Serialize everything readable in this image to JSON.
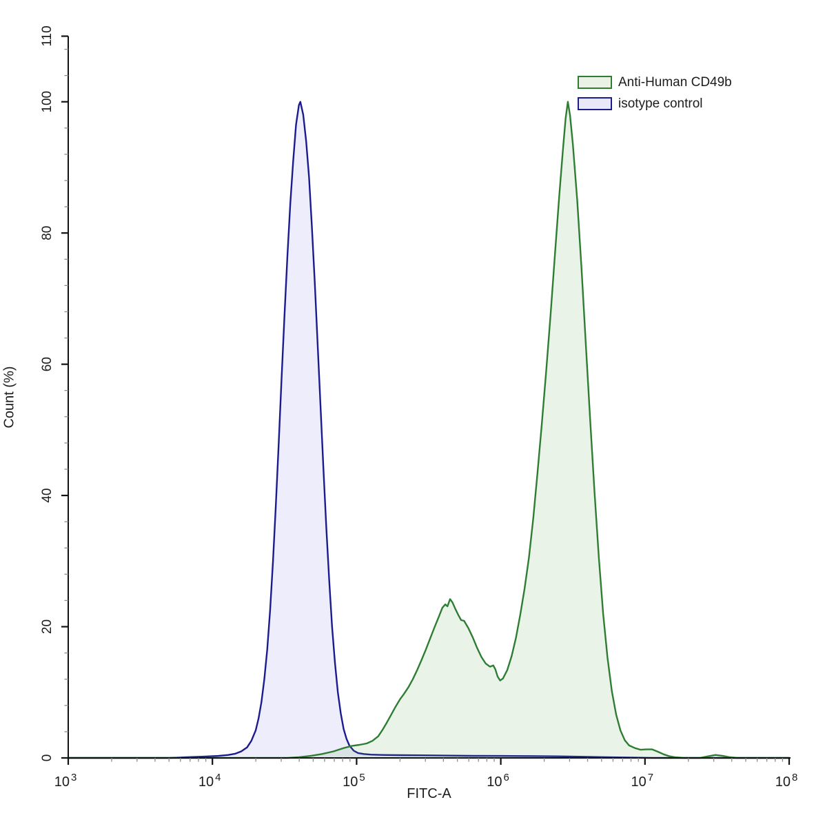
{
  "figure": {
    "background": "#ffffff",
    "axis_color": "#111111",
    "minor_tick_color": "#8a8a8a",
    "text_color": "#1c1c1c"
  },
  "legend": {
    "entries": [
      {
        "label": "Anti-Human CD49b",
        "stroke": "#2e7d33",
        "fill": "#e9f2e4"
      },
      {
        "label": "isotype control",
        "stroke": "#1b1b8e",
        "fill": "#e8e8f8"
      }
    ]
  },
  "chart_data": {
    "type": "area",
    "title": "",
    "xlabel": "FITC-A",
    "ylabel": "Count  (%)",
    "x_scale": "log10",
    "x_range_exponents": [
      3,
      8
    ],
    "x_major_tick_exponents": [
      3,
      4,
      5,
      6,
      7,
      8
    ],
    "x_tick_base": "10",
    "x_minor_ticks_per_decade": [
      2,
      3,
      4,
      5,
      6,
      7,
      8,
      9
    ],
    "y_range": [
      0,
      110
    ],
    "y_major_ticks": [
      0,
      20,
      40,
      60,
      80,
      100,
      110
    ],
    "y_minor_step": 4,
    "grid": false,
    "legend_position": "top-right",
    "series": [
      {
        "name": "isotype control",
        "stroke": "#1b1b8e",
        "fill": "rgba(80,80,215,0.10)",
        "stroke_width": 2.4,
        "points_log10x_pct": [
          [
            3.0,
            0
          ],
          [
            3.7,
            0
          ],
          [
            3.82,
            0.1
          ],
          [
            3.94,
            0.2
          ],
          [
            4.04,
            0.3
          ],
          [
            4.11,
            0.45
          ],
          [
            4.16,
            0.65
          ],
          [
            4.2,
            1.0
          ],
          [
            4.24,
            1.6
          ],
          [
            4.27,
            2.6
          ],
          [
            4.3,
            4.2
          ],
          [
            4.32,
            6.0
          ],
          [
            4.34,
            8.5
          ],
          [
            4.36,
            12.0
          ],
          [
            4.38,
            16.5
          ],
          [
            4.4,
            22.5
          ],
          [
            4.42,
            30.0
          ],
          [
            4.44,
            38.5
          ],
          [
            4.46,
            48.0
          ],
          [
            4.48,
            58.0
          ],
          [
            4.5,
            67.5
          ],
          [
            4.52,
            76.5
          ],
          [
            4.54,
            84.5
          ],
          [
            4.56,
            91.0
          ],
          [
            4.58,
            96.5
          ],
          [
            4.6,
            99.5
          ],
          [
            4.61,
            100.0
          ],
          [
            4.63,
            98.0
          ],
          [
            4.65,
            94.0
          ],
          [
            4.67,
            88.5
          ],
          [
            4.69,
            81.0
          ],
          [
            4.71,
            72.5
          ],
          [
            4.73,
            63.0
          ],
          [
            4.75,
            53.5
          ],
          [
            4.77,
            44.0
          ],
          [
            4.79,
            35.0
          ],
          [
            4.81,
            27.0
          ],
          [
            4.83,
            20.0
          ],
          [
            4.85,
            14.5
          ],
          [
            4.87,
            10.0
          ],
          [
            4.89,
            6.8
          ],
          [
            4.91,
            4.4
          ],
          [
            4.93,
            2.9
          ],
          [
            4.95,
            1.9
          ],
          [
            4.98,
            1.1
          ],
          [
            5.01,
            0.75
          ],
          [
            5.05,
            0.6
          ],
          [
            5.1,
            0.5
          ],
          [
            5.18,
            0.45
          ],
          [
            5.3,
            0.42
          ],
          [
            5.45,
            0.4
          ],
          [
            5.62,
            0.36
          ],
          [
            5.8,
            0.32
          ],
          [
            6.0,
            0.3
          ],
          [
            6.2,
            0.28
          ],
          [
            6.4,
            0.24
          ],
          [
            6.58,
            0.18
          ],
          [
            6.74,
            0.1
          ],
          [
            6.9,
            0.05
          ],
          [
            7.05,
            0
          ],
          [
            8.0,
            0
          ]
        ]
      },
      {
        "name": "Anti-Human CD49b",
        "stroke": "#2e7d33",
        "fill": "rgba(95,165,80,0.13)",
        "stroke_width": 2.4,
        "points_log10x_pct": [
          [
            3.0,
            0
          ],
          [
            4.52,
            0
          ],
          [
            4.6,
            0.1
          ],
          [
            4.68,
            0.3
          ],
          [
            4.76,
            0.6
          ],
          [
            4.84,
            1.0
          ],
          [
            4.91,
            1.5
          ],
          [
            4.97,
            1.85
          ],
          [
            5.02,
            2.0
          ],
          [
            5.07,
            2.2
          ],
          [
            5.11,
            2.6
          ],
          [
            5.15,
            3.3
          ],
          [
            5.18,
            4.3
          ],
          [
            5.21,
            5.4
          ],
          [
            5.24,
            6.6
          ],
          [
            5.27,
            7.8
          ],
          [
            5.3,
            8.9
          ],
          [
            5.33,
            9.8
          ],
          [
            5.36,
            10.8
          ],
          [
            5.39,
            12.0
          ],
          [
            5.42,
            13.4
          ],
          [
            5.45,
            14.9
          ],
          [
            5.48,
            16.5
          ],
          [
            5.51,
            18.2
          ],
          [
            5.54,
            19.9
          ],
          [
            5.57,
            21.5
          ],
          [
            5.595,
            22.9
          ],
          [
            5.615,
            23.4
          ],
          [
            5.63,
            23.1
          ],
          [
            5.648,
            24.2
          ],
          [
            5.665,
            23.7
          ],
          [
            5.685,
            22.7
          ],
          [
            5.705,
            21.8
          ],
          [
            5.725,
            21.0
          ],
          [
            5.745,
            20.9
          ],
          [
            5.775,
            19.8
          ],
          [
            5.805,
            18.4
          ],
          [
            5.835,
            16.8
          ],
          [
            5.865,
            15.4
          ],
          [
            5.895,
            14.4
          ],
          [
            5.925,
            13.9
          ],
          [
            5.948,
            14.1
          ],
          [
            5.962,
            13.5
          ],
          [
            5.978,
            12.4
          ],
          [
            5.995,
            11.8
          ],
          [
            6.015,
            12.1
          ],
          [
            6.045,
            13.4
          ],
          [
            6.075,
            15.5
          ],
          [
            6.105,
            18.3
          ],
          [
            6.135,
            21.8
          ],
          [
            6.165,
            25.8
          ],
          [
            6.195,
            30.5
          ],
          [
            6.225,
            36.5
          ],
          [
            6.255,
            43.5
          ],
          [
            6.285,
            51.0
          ],
          [
            6.315,
            59.0
          ],
          [
            6.345,
            67.5
          ],
          [
            6.375,
            76.5
          ],
          [
            6.405,
            85.5
          ],
          [
            6.43,
            92.5
          ],
          [
            6.45,
            97.5
          ],
          [
            6.465,
            100.0
          ],
          [
            6.48,
            98.0
          ],
          [
            6.5,
            93.5
          ],
          [
            6.53,
            85.0
          ],
          [
            6.56,
            74.5
          ],
          [
            6.59,
            63.0
          ],
          [
            6.62,
            51.5
          ],
          [
            6.65,
            40.5
          ],
          [
            6.68,
            30.5
          ],
          [
            6.71,
            22.0
          ],
          [
            6.74,
            15.3
          ],
          [
            6.77,
            10.2
          ],
          [
            6.8,
            6.6
          ],
          [
            6.83,
            4.2
          ],
          [
            6.86,
            2.7
          ],
          [
            6.89,
            1.9
          ],
          [
            6.93,
            1.5
          ],
          [
            6.97,
            1.25
          ],
          [
            7.01,
            1.3
          ],
          [
            7.05,
            1.3
          ],
          [
            7.09,
            0.95
          ],
          [
            7.13,
            0.55
          ],
          [
            7.17,
            0.25
          ],
          [
            7.21,
            0.1
          ],
          [
            7.27,
            0
          ],
          [
            7.38,
            0
          ],
          [
            7.44,
            0.25
          ],
          [
            7.49,
            0.45
          ],
          [
            7.54,
            0.3
          ],
          [
            7.59,
            0.1
          ],
          [
            7.64,
            0
          ],
          [
            8.0,
            0
          ]
        ]
      }
    ]
  }
}
